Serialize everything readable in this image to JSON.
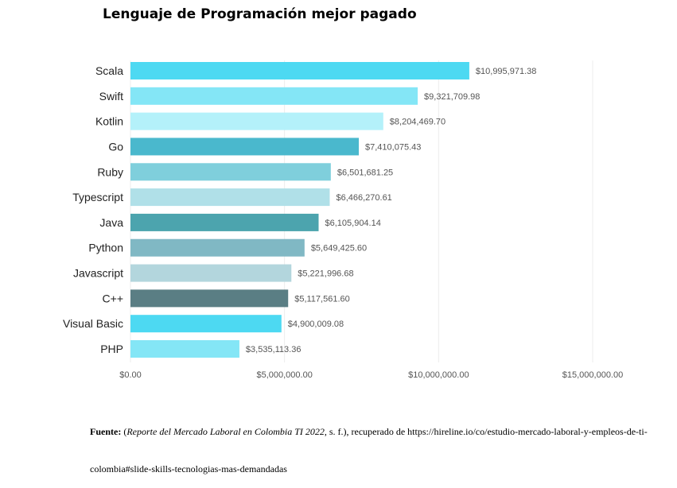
{
  "chart_data": {
    "type": "bar",
    "orientation": "horizontal",
    "title": "Lenguaje de Programación mejor pagado",
    "categories": [
      "Scala",
      "Swift",
      "Kotlin",
      "Go",
      "Ruby",
      "Typescript",
      "Java",
      "Python",
      "Javascript",
      "C++",
      "Visual Basic",
      "PHP"
    ],
    "values": [
      10995971.38,
      9321709.98,
      8204469.7,
      7410075.43,
      6501681.25,
      6466270.61,
      6105904.14,
      5649425.6,
      5221996.68,
      5117561.6,
      4900009.08,
      3535113.36
    ],
    "value_labels": [
      "$10,995,971.38",
      "$9,321,709.98",
      "$8,204,469.70",
      "$7,410,075.43",
      "$6,501,681.25",
      "$6,466,270.61",
      "$6,105,904.14",
      "$5,649,425.60",
      "$5,221,996.68",
      "$5,117,561.60",
      "$4,900,009.08",
      "$3,535,113.36"
    ],
    "colors": [
      "#4dd9f2",
      "#84e6f6",
      "#b4f1fa",
      "#4ab8cd",
      "#7fcfdc",
      "#b0e0e8",
      "#4ca4ae",
      "#80b8c4",
      "#b3d6dd",
      "#5a7e84",
      "#4dd9f2",
      "#84e6f6"
    ],
    "xlim": [
      0,
      15000000
    ],
    "x_ticks": [
      0,
      5000000,
      10000000,
      15000000
    ],
    "x_tick_labels": [
      "$0.00",
      "$5,000,000.00",
      "$10,000,000.00",
      "$15,000,000.00"
    ],
    "grid": true
  },
  "source": {
    "label": "Fuente:",
    "text_before": " (",
    "italic": "Reporte del Mercado Laboral en Colombia TI 2022",
    "text_after": ", s. f.), recuperado de https://hireline.io/co/estudio-mercado-laboral-y-empleos-de-ti-colombia#slide-skills-tecnologias-mas-demandadas"
  }
}
